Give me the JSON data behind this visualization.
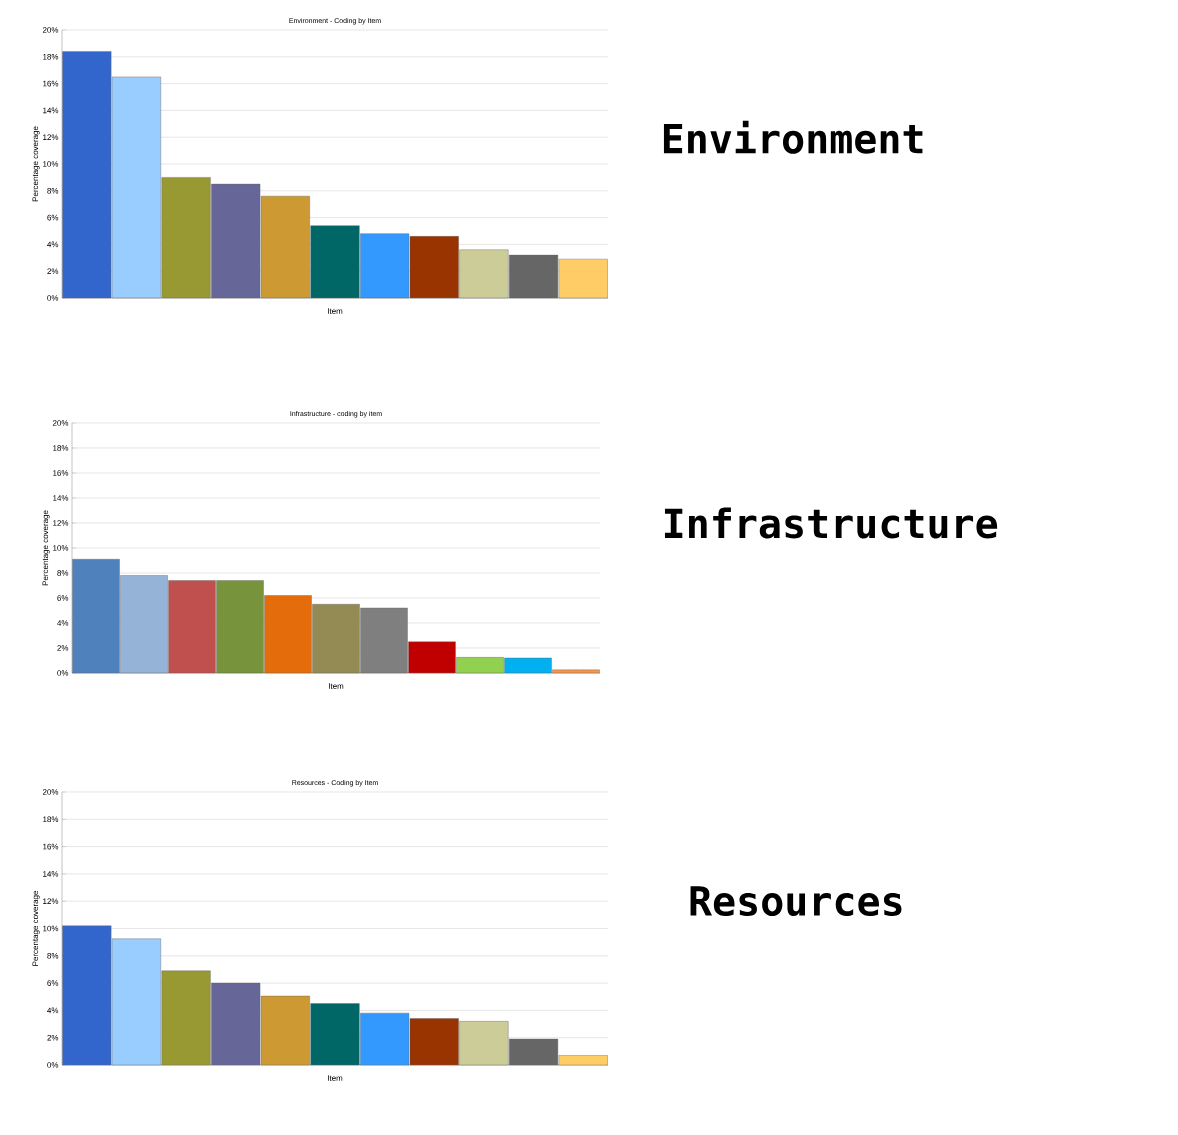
{
  "chart_data": [
    {
      "type": "bar",
      "title": "Environment - Coding by Item",
      "xlabel": "Item",
      "ylabel": "Percentage coverage",
      "annotations": [
        "Environment"
      ],
      "categories": [
        null,
        null,
        null,
        null,
        null,
        null,
        null,
        null,
        null,
        null,
        null
      ],
      "values": [
        18.4,
        16.5,
        9.0,
        8.5,
        7.6,
        5.4,
        4.8,
        4.6,
        3.6,
        3.2,
        2.9
      ],
      "colors": [
        "#3366cc",
        "#99ccff",
        "#999933",
        "#666699",
        "#cc9933",
        "#006666",
        "#3399ff",
        "#993300",
        "#cccc99",
        "#666666",
        "#ffcc66"
      ],
      "ylim": [
        0,
        20
      ],
      "yticks": [
        {
          "value": 0,
          "label": "0%"
        },
        {
          "value": 2,
          "label": "2%"
        },
        {
          "value": 4,
          "label": "4%"
        },
        {
          "value": 6,
          "label": "6%"
        },
        {
          "value": 8,
          "label": "8%"
        },
        {
          "value": 10,
          "label": "10%"
        },
        {
          "value": 12,
          "label": "12%"
        },
        {
          "value": 14,
          "label": "14%"
        },
        {
          "value": 16,
          "label": "16%"
        },
        {
          "value": 18,
          "label": "18%"
        },
        {
          "value": 20,
          "label": "20%"
        }
      ],
      "grid": "y"
    },
    {
      "type": "bar",
      "title": "Infrastructure - coding by item",
      "xlabel": "Item",
      "ylabel": "Percentage coverage",
      "annotations": [
        "Infrastructure"
      ],
      "categories": [
        null,
        null,
        null,
        null,
        null,
        null,
        null,
        null,
        null,
        null,
        null
      ],
      "values": [
        9.1,
        7.8,
        7.4,
        7.4,
        6.2,
        5.5,
        5.2,
        2.5,
        1.25,
        1.2,
        0.25
      ],
      "colors": [
        "#4f81bd",
        "#95b3d7",
        "#c0504d",
        "#77933c",
        "#e46c0a",
        "#948a54",
        "#7f7f7f",
        "#c00000",
        "#92d050",
        "#00b0f0",
        "#f79646"
      ],
      "ylim": [
        0,
        20
      ],
      "yticks": [
        {
          "value": 0,
          "label": "0%"
        },
        {
          "value": 2,
          "label": "2%"
        },
        {
          "value": 4,
          "label": "4%"
        },
        {
          "value": 6,
          "label": "6%"
        },
        {
          "value": 8,
          "label": "8%"
        },
        {
          "value": 10,
          "label": "10%"
        },
        {
          "value": 12,
          "label": "12%"
        },
        {
          "value": 14,
          "label": "14%"
        },
        {
          "value": 16,
          "label": "16%"
        },
        {
          "value": 18,
          "label": "18%"
        },
        {
          "value": 20,
          "label": "20%"
        }
      ],
      "grid": "y"
    },
    {
      "type": "bar",
      "title": "Resources - Coding by Item",
      "xlabel": "Item",
      "ylabel": "Percentage coverage",
      "annotations": [
        "Resources"
      ],
      "categories": [
        null,
        null,
        null,
        null,
        null,
        null,
        null,
        null,
        null,
        null,
        null
      ],
      "values": [
        10.2,
        9.25,
        6.9,
        6.0,
        5.05,
        4.5,
        3.8,
        3.4,
        3.2,
        1.9,
        0.7
      ],
      "colors": [
        "#3366cc",
        "#99ccff",
        "#999933",
        "#666699",
        "#cc9933",
        "#006666",
        "#3399ff",
        "#993300",
        "#cccc99",
        "#666666",
        "#ffcc66"
      ],
      "ylim": [
        0,
        20
      ],
      "yticks": [
        {
          "value": 0,
          "label": "0%"
        },
        {
          "value": 2,
          "label": "2%"
        },
        {
          "value": 4,
          "label": "4%"
        },
        {
          "value": 6,
          "label": "6%"
        },
        {
          "value": 8,
          "label": "8%"
        },
        {
          "value": 10,
          "label": "10%"
        },
        {
          "value": 12,
          "label": "12%"
        },
        {
          "value": 14,
          "label": "14%"
        },
        {
          "value": 16,
          "label": "16%"
        },
        {
          "value": 18,
          "label": "18%"
        },
        {
          "value": 20,
          "label": "20%"
        }
      ],
      "grid": "y"
    }
  ]
}
